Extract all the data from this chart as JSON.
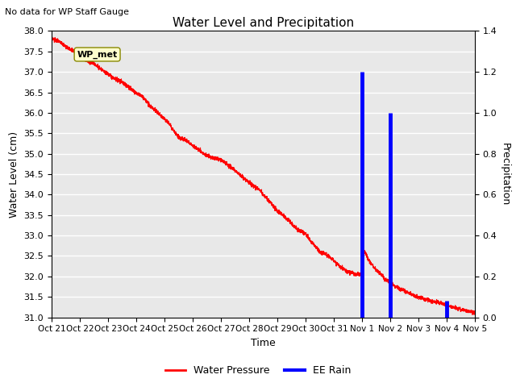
{
  "title": "Water Level and Precipitation",
  "subtitle": "No data for WP Staff Gauge",
  "xlabel": "Time",
  "ylabel_left": "Water Level (cm)",
  "ylabel_right": "Precipitation",
  "annotation": "WP_met",
  "ylim_left": [
    31.0,
    38.0
  ],
  "ylim_right": [
    0.0,
    1.4
  ],
  "yticks_left": [
    31.0,
    31.5,
    32.0,
    32.5,
    33.0,
    33.5,
    34.0,
    34.5,
    35.0,
    35.5,
    36.0,
    36.5,
    37.0,
    37.5,
    38.0
  ],
  "yticks_right": [
    0.0,
    0.2,
    0.4,
    0.6,
    0.8,
    1.0,
    1.2,
    1.4
  ],
  "bg_color": "#e8e8e8",
  "line_color_water": "#ff0000",
  "line_color_rain": "#0000ff",
  "legend_water": "Water Pressure",
  "legend_rain": "EE Rain",
  "xtick_labels": [
    "Oct 21",
    "Oct 22",
    "Oct 23",
    "Oct 24",
    "Oct 25",
    "Oct 26",
    "Oct 27",
    "Oct 28",
    "Oct 29",
    "Oct 30",
    "Oct 31",
    "Nov 1",
    "Nov 2",
    "Nov 3",
    "Nov 4",
    "Nov 5"
  ],
  "rain_days": [
    11.0,
    12.0,
    14.0
  ],
  "rain_values": [
    1.2,
    1.0,
    0.08
  ],
  "water_t": [
    0,
    0.3,
    0.5,
    0.8,
    1.0,
    1.2,
    1.5,
    1.8,
    2.0,
    2.2,
    2.5,
    2.8,
    3.0,
    3.2,
    3.3,
    3.5,
    3.7,
    4.0,
    4.2,
    4.5,
    4.8,
    5.0,
    5.2,
    5.4,
    5.5,
    5.7,
    6.0,
    6.2,
    6.5,
    6.8,
    7.0,
    7.2,
    7.4,
    7.5,
    7.7,
    8.0,
    8.2,
    8.5,
    8.7,
    9.0,
    9.2,
    9.4,
    9.5,
    9.7,
    10.0,
    10.2,
    10.4,
    10.5,
    10.6,
    10.7,
    10.8,
    10.9,
    11.0,
    11.05,
    11.1,
    11.15,
    11.2,
    11.3,
    11.4,
    11.5,
    11.6,
    11.7,
    11.8,
    12.0,
    12.2,
    12.5,
    12.8,
    13.0,
    13.2,
    13.5,
    13.8,
    14.0,
    14.2,
    14.5,
    14.8,
    15.0
  ],
  "water_v": [
    37.8,
    37.75,
    37.6,
    37.5,
    37.45,
    37.3,
    37.2,
    37.05,
    36.95,
    36.85,
    36.75,
    36.6,
    36.5,
    36.4,
    36.35,
    36.15,
    36.05,
    35.85,
    35.7,
    35.4,
    35.3,
    35.2,
    35.1,
    35.0,
    34.95,
    34.9,
    34.85,
    34.75,
    34.6,
    34.4,
    34.3,
    34.2,
    34.1,
    34.0,
    33.85,
    33.6,
    33.5,
    33.3,
    33.15,
    33.05,
    32.85,
    32.7,
    32.6,
    32.55,
    32.4,
    32.25,
    32.15,
    32.1,
    32.1,
    32.08,
    32.05,
    32.05,
    32.05,
    32.5,
    32.6,
    32.55,
    32.45,
    32.35,
    32.25,
    32.15,
    32.1,
    32.05,
    31.95,
    31.85,
    31.75,
    31.65,
    31.55,
    31.5,
    31.45,
    31.4,
    31.35,
    31.3,
    31.25,
    31.2,
    31.15,
    31.1
  ]
}
